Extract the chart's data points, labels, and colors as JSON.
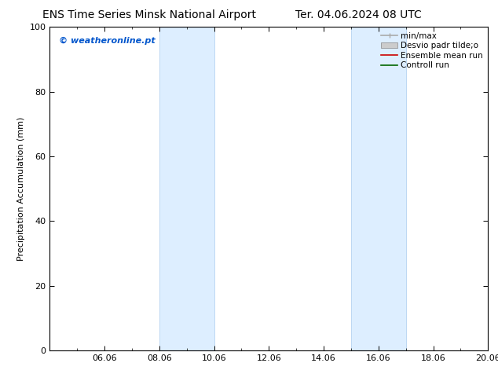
{
  "title_left": "ENS Time Series Minsk National Airport",
  "title_right": "Ter. 04.06.2024 08 UTC",
  "ylabel": "Precipitation Accumulation (mm)",
  "ylim": [
    0,
    100
  ],
  "yticks": [
    0,
    20,
    40,
    60,
    80,
    100
  ],
  "xlim_days": [
    0,
    16
  ],
  "xtick_labels": [
    "06.06",
    "08.06",
    "10.06",
    "12.06",
    "14.06",
    "16.06",
    "18.06",
    "20.06"
  ],
  "xtick_positions_days": [
    2,
    4,
    6,
    8,
    10,
    12,
    14,
    16
  ],
  "shaded_regions": [
    {
      "start_day": 4,
      "end_day": 6
    },
    {
      "start_day": 11,
      "end_day": 13
    }
  ],
  "shaded_color": "#ddeeff",
  "shaded_edge_color": "#aaccee",
  "watermark_text": "© weatheronline.pt",
  "watermark_color": "#0055cc",
  "legend_entries": [
    {
      "label": "min/max",
      "color": "#aaaaaa",
      "lw": 1.2
    },
    {
      "label": "Desvio padr tilde;o",
      "color": "#cccccc",
      "lw": 6
    },
    {
      "label": "Ensemble mean run",
      "color": "#cc0000",
      "lw": 1.2
    },
    {
      "label": "Controll run",
      "color": "#006600",
      "lw": 1.2
    }
  ],
  "background_color": "#ffffff",
  "font_size_title": 10,
  "font_size_labels": 8,
  "font_size_watermark": 8,
  "font_size_legend": 7.5
}
